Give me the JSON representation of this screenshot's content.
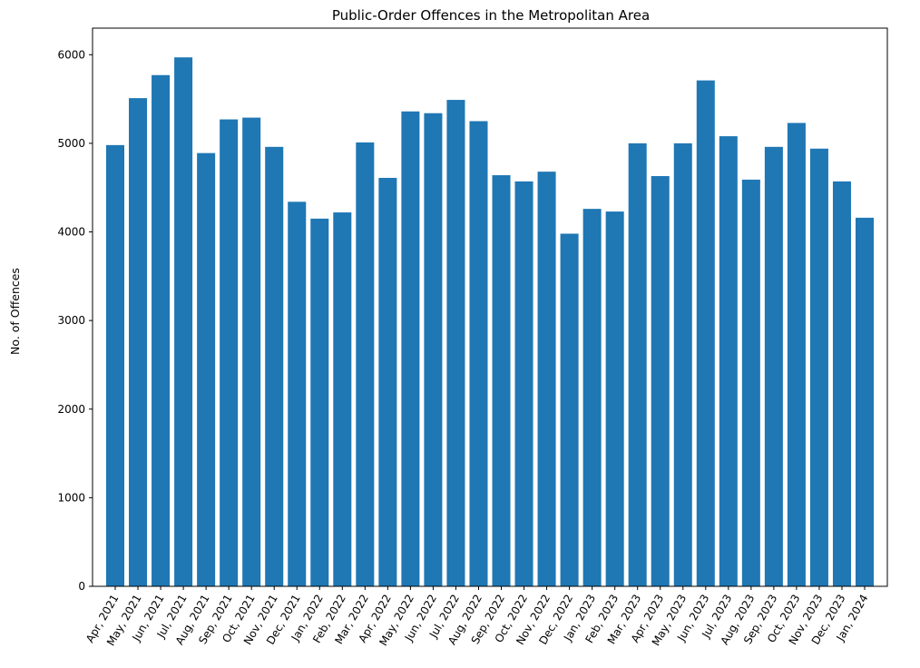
{
  "chart_data": {
    "type": "bar",
    "title": "Public-Order Offences in the Metropolitan Area",
    "xlabel": "",
    "ylabel": "No. of Offences",
    "ylim": [
      0,
      6300
    ],
    "yticks": [
      0,
      1000,
      2000,
      3000,
      4000,
      5000,
      6000
    ],
    "grid": false,
    "bar_color": "#1f77b4",
    "categories": [
      "Apr, 2021",
      "May, 2021",
      "Jun, 2021",
      "Jul, 2021",
      "Aug, 2021",
      "Sep, 2021",
      "Oct, 2021",
      "Nov, 2021",
      "Dec, 2021",
      "Jan, 2022",
      "Feb, 2022",
      "Mar, 2022",
      "Apr, 2022",
      "May, 2022",
      "Jun, 2022",
      "Jul, 2022",
      "Aug, 2022",
      "Sep, 2022",
      "Oct, 2022",
      "Nov, 2022",
      "Dec, 2022",
      "Jan, 2023",
      "Feb, 2023",
      "Mar, 2023",
      "Apr, 2023",
      "May, 2023",
      "Jun, 2023",
      "Jul, 2023",
      "Aug, 2023",
      "Sep, 2023",
      "Oct, 2023",
      "Nov, 2023",
      "Dec, 2023",
      "Jan, 2024"
    ],
    "values": [
      4980,
      5510,
      5770,
      5970,
      4890,
      5270,
      5290,
      4960,
      4340,
      4150,
      4220,
      5010,
      4610,
      5360,
      5340,
      5490,
      5250,
      4640,
      4570,
      4680,
      3980,
      4260,
      4230,
      5000,
      4630,
      5000,
      5710,
      5080,
      4590,
      4960,
      5230,
      4940,
      4570,
      4160
    ]
  }
}
